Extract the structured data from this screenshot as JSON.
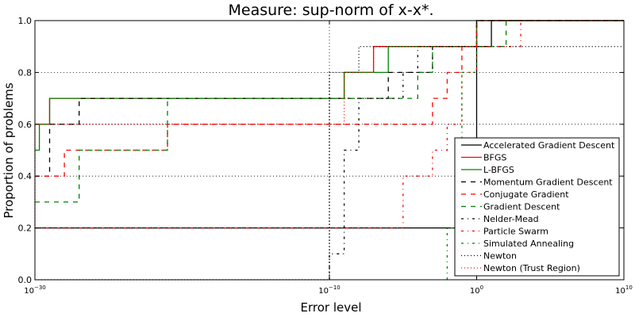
{
  "chart_data": {
    "type": "line",
    "title": "Measure: sup-norm of x-x*.",
    "xlabel": "Error level",
    "ylabel": "Proportion of problems",
    "x_scale": "log",
    "xlim": [
      "1e-30",
      "1e10"
    ],
    "ylim": [
      0,
      1
    ],
    "grid": true,
    "legend_position": "lower-right",
    "x_ticks": [
      {
        "exp": -30,
        "base": "10",
        "sup": "−30"
      },
      {
        "exp": -10,
        "base": "10",
        "sup": "−10"
      },
      {
        "exp": 0,
        "base": "10",
        "sup": "0"
      },
      {
        "exp": 10,
        "base": "10",
        "sup": "10"
      }
    ],
    "y_ticks": [
      "0.0",
      "0.2",
      "0.4",
      "0.6",
      "0.8",
      "1.0"
    ],
    "series": [
      {
        "name": "Accelerated Gradient Descent",
        "color": "#000000",
        "dash": "solid",
        "points": [
          [
            "1e-30",
            0.2
          ],
          [
            "1e-1",
            0.2
          ],
          [
            "1e-1",
            0.4
          ],
          [
            "1e0",
            0.4
          ],
          [
            "1e0",
            0.9
          ],
          [
            "1e1",
            0.9
          ],
          [
            "1e1",
            1.0
          ],
          [
            "1e10",
            1.0
          ]
        ]
      },
      {
        "name": "BFGS",
        "color": "#ff0000",
        "dash": "solid",
        "points": [
          [
            "1e-30",
            0.6
          ],
          [
            "1e-29",
            0.6
          ],
          [
            "1e-29",
            0.7
          ],
          [
            "1e-9",
            0.7
          ],
          [
            "1e-9",
            0.8
          ],
          [
            "1e-7",
            0.8
          ],
          [
            "1e-7",
            0.9
          ],
          [
            "1e0",
            0.9
          ],
          [
            "1e0",
            1.0
          ],
          [
            "1e10",
            1.0
          ]
        ]
      },
      {
        "name": "L-BFGS",
        "color": "#008000",
        "dash": "solid",
        "points": [
          [
            "1e-30",
            0.5
          ],
          [
            "1e-29.7",
            0.5
          ],
          [
            "1e-29.7",
            0.6
          ],
          [
            "1e-29",
            0.6
          ],
          [
            "1e-29",
            0.7
          ],
          [
            "1e-9",
            0.7
          ],
          [
            "1e-9",
            0.8
          ],
          [
            "1e-6",
            0.8
          ],
          [
            "1e-6",
            0.9
          ],
          [
            "1e0",
            0.9
          ],
          [
            "1e0",
            1.0
          ],
          [
            "1e10",
            1.0
          ]
        ]
      },
      {
        "name": "Momentum Gradient Descent",
        "color": "#000000",
        "dash": "dashed",
        "points": [
          [
            "1e-30",
            0.4
          ],
          [
            "1e-29",
            0.4
          ],
          [
            "1e-29",
            0.6
          ],
          [
            "1e-27",
            0.6
          ],
          [
            "1e-27",
            0.7
          ],
          [
            "1e-6",
            0.7
          ],
          [
            "1e-6",
            0.8
          ],
          [
            "1e-3",
            0.8
          ],
          [
            "1e-3",
            0.9
          ],
          [
            "1e0",
            0.9
          ],
          [
            "1e0",
            1.0
          ],
          [
            "1e10",
            1.0
          ]
        ]
      },
      {
        "name": "Conjugate Gradient",
        "color": "#ff0000",
        "dash": "dashed",
        "points": [
          [
            "1e-30",
            0.4
          ],
          [
            "1e-28",
            0.4
          ],
          [
            "1e-28",
            0.5
          ],
          [
            "1e-21",
            0.5
          ],
          [
            "1e-21",
            0.6
          ],
          [
            "1e-3",
            0.6
          ],
          [
            "1e-3",
            0.7
          ],
          [
            "1e-2",
            0.7
          ],
          [
            "1e-2",
            0.8
          ],
          [
            "1e-1",
            0.8
          ],
          [
            "1e-1",
            0.9
          ],
          [
            "1e0",
            0.9
          ],
          [
            "1e0",
            1.0
          ],
          [
            "1e10",
            1.0
          ]
        ]
      },
      {
        "name": "Gradient Descent",
        "color": "#008000",
        "dash": "dashed",
        "points": [
          [
            "1e-30",
            0.3
          ],
          [
            "1e-27",
            0.3
          ],
          [
            "1e-27",
            0.5
          ],
          [
            "1e-21",
            0.5
          ],
          [
            "1e-21",
            0.7
          ],
          [
            "1e-4",
            0.7
          ],
          [
            "1e-4",
            0.8
          ],
          [
            "1e-3",
            0.8
          ],
          [
            "1e-3",
            0.9
          ],
          [
            "1e2",
            0.9
          ],
          [
            "1e2",
            1.0
          ],
          [
            "1e10",
            1.0
          ]
        ]
      },
      {
        "name": "Nelder-Mead",
        "color": "#000000",
        "dash": "dashdot",
        "points": [
          [
            "1e-10",
            0.0
          ],
          [
            "1e-10",
            0.1
          ],
          [
            "1e-9",
            0.1
          ],
          [
            "1e-9",
            0.5
          ],
          [
            "1e-8",
            0.5
          ],
          [
            "1e-8",
            0.7
          ],
          [
            "1e-5",
            0.7
          ],
          [
            "1e-5",
            0.8
          ],
          [
            "1e-4",
            0.8
          ],
          [
            "1e-4",
            0.9
          ],
          [
            "1e0",
            0.9
          ],
          [
            "1e0",
            1.0
          ],
          [
            "1e10",
            1.0
          ]
        ]
      },
      {
        "name": "Particle Swarm",
        "color": "#ff0000",
        "dash": "dashdot",
        "points": [
          [
            "1e-30",
            0.2
          ],
          [
            "1e-5",
            0.2
          ],
          [
            "1e-5",
            0.4
          ],
          [
            "1e-3",
            0.4
          ],
          [
            "1e-3",
            0.5
          ],
          [
            "1e-2",
            0.5
          ],
          [
            "1e-2",
            0.6
          ],
          [
            "1e-1",
            0.6
          ],
          [
            "1e-1",
            0.8
          ],
          [
            "1e0",
            0.8
          ],
          [
            "1e0",
            0.9
          ],
          [
            "1e3",
            0.9
          ],
          [
            "1e3",
            1.0
          ],
          [
            "1e10",
            1.0
          ]
        ]
      },
      {
        "name": "Simulated Annealing",
        "color": "#008000",
        "dash": "dashdot",
        "points": [
          [
            "1e-2",
            0.0
          ],
          [
            "1e-2",
            0.2
          ],
          [
            "1e-1",
            0.2
          ],
          [
            "1e-1",
            0.8
          ],
          [
            "1e0",
            0.8
          ],
          [
            "1e0",
            1.0
          ],
          [
            "1e10",
            1.0
          ]
        ]
      },
      {
        "name": "Newton",
        "color": "#000000",
        "dash": "dotted",
        "points": [
          [
            "1e-30",
            0.0
          ],
          [
            "1e-10",
            0.0
          ],
          [
            "1e-10",
            0.8
          ],
          [
            "1e-8",
            0.8
          ],
          [
            "1e-8",
            0.9
          ],
          [
            "1e10",
            0.9
          ]
        ]
      },
      {
        "name": "Newton (Trust Region)",
        "color": "#ff0000",
        "dash": "dotted",
        "points": [
          [
            "1e-30",
            0.2
          ],
          [
            "1e-30",
            0.6
          ],
          [
            "1e-9",
            0.6
          ],
          [
            "1e-9",
            0.8
          ],
          [
            "1e-7",
            0.8
          ],
          [
            "1e-7",
            0.9
          ],
          [
            "1e0",
            0.9
          ],
          [
            "1e0",
            1.0
          ],
          [
            "1e10",
            1.0
          ]
        ]
      }
    ]
  }
}
